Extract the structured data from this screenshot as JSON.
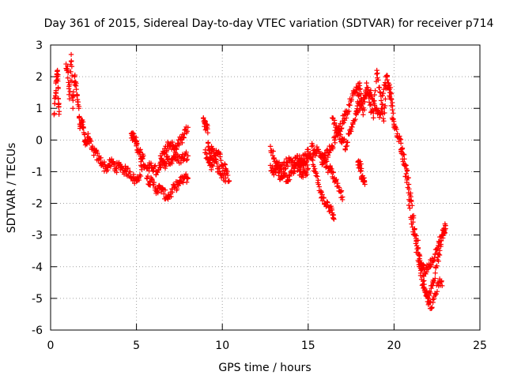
{
  "chart_data": {
    "type": "scatter",
    "title": "Day 361 of 2015, Sidereal Day-to-day VTEC variation (SDTVAR) for receiver p714",
    "xlabel": "GPS time / hours",
    "ylabel": "SDTVAR / TECUs",
    "xlim": [
      0,
      25
    ],
    "ylim": [
      -6,
      3
    ],
    "xticks": [
      0,
      5,
      10,
      15,
      20,
      25
    ],
    "xtick_labels": [
      "0",
      "5",
      "10",
      "15",
      "20",
      "25"
    ],
    "yticks": [
      -6,
      -5,
      -4,
      -3,
      -2,
      -1,
      0,
      1,
      2,
      3
    ],
    "ytick_labels": [
      "-6",
      "-5",
      "-4",
      "-3",
      "-2",
      "-1",
      "0",
      "1",
      "2",
      "3"
    ],
    "grid": true,
    "marker": "+",
    "color": "#ff0000",
    "series": [
      {
        "name": "SDTVAR",
        "segments": [
          {
            "x": [
              0.2,
              0.3,
              0.35,
              0.4,
              0.45,
              0.5
            ],
            "y": [
              0.8,
              1.5,
              2.0,
              2.2,
              1.3,
              0.9
            ]
          },
          {
            "x": [
              0.9,
              1.0,
              1.1,
              1.2,
              1.3,
              1.4,
              1.5,
              1.6,
              1.7,
              1.8,
              1.9,
              2.0,
              2.1,
              2.2,
              2.4,
              2.6,
              2.8,
              3.0,
              3.2,
              3.4,
              3.6,
              3.8,
              4.0,
              4.2,
              4.4,
              4.6,
              4.8,
              5.0,
              5.2,
              5.4
            ],
            "y": [
              2.4,
              2.2,
              1.3,
              2.7,
              1.0,
              2.0,
              1.6,
              1.2,
              0.5,
              0.6,
              0.4,
              0.0,
              -0.1,
              0.1,
              -0.3,
              -0.4,
              -0.6,
              -0.7,
              -0.9,
              -0.8,
              -0.7,
              -0.9,
              -0.8,
              -0.9,
              -1.0,
              -1.0,
              -1.2,
              -1.3,
              -1.1,
              -0.5
            ]
          },
          {
            "x": [
              4.7,
              4.8,
              4.9,
              5.0,
              5.1,
              5.2,
              5.3,
              5.5
            ],
            "y": [
              0.2,
              0.1,
              0.0,
              -0.1,
              -0.3,
              -0.4,
              -0.6,
              -0.8
            ]
          },
          {
            "x": [
              5.6,
              5.8,
              6.0,
              6.2,
              6.4,
              6.6,
              6.8,
              7.0,
              7.2,
              7.4,
              7.6,
              7.8,
              8.0
            ],
            "y": [
              -1.2,
              -1.3,
              -1.4,
              -1.6,
              -1.5,
              -1.7,
              -1.8,
              -1.7,
              -1.5,
              -1.4,
              -1.3,
              -1.2,
              -1.2
            ]
          },
          {
            "x": [
              5.6,
              5.8,
              6.0,
              6.2,
              6.4,
              6.6,
              6.8,
              7.0,
              7.2,
              7.4,
              7.6,
              7.8,
              8.0
            ],
            "y": [
              -0.9,
              -0.8,
              -0.9,
              -1.0,
              -0.7,
              -0.8,
              -0.6,
              -0.7,
              -0.5,
              -0.6,
              -0.6,
              -0.5,
              -0.5
            ]
          },
          {
            "x": [
              6.4,
              6.6,
              6.8,
              7.0,
              7.2,
              7.4,
              7.6,
              7.8,
              8.0
            ],
            "y": [
              -0.5,
              -0.4,
              -0.2,
              -0.1,
              -0.3,
              -0.1,
              0.0,
              0.2,
              0.4
            ]
          },
          {
            "x": [
              8.9,
              9.0,
              9.1,
              9.2,
              9.3,
              9.4,
              9.6,
              9.8,
              10.0,
              10.2,
              10.4
            ],
            "y": [
              0.7,
              0.5,
              0.4,
              -0.2,
              -0.6,
              -0.3,
              -0.5,
              -0.4,
              -0.8,
              -0.9,
              -1.3
            ]
          },
          {
            "x": [
              9.0,
              9.2,
              9.4,
              9.6,
              9.8,
              10.0,
              10.2
            ],
            "y": [
              -0.4,
              -0.7,
              -0.8,
              -0.6,
              -1.0,
              -1.1,
              -1.2
            ]
          },
          {
            "x": [
              12.8,
              13.0,
              13.2,
              13.4,
              13.6,
              13.8,
              14.0,
              14.2,
              14.4,
              14.6,
              14.8,
              15.0
            ],
            "y": [
              -0.2,
              -0.6,
              -0.9,
              -1.2,
              -1.1,
              -1.3,
              -1.0,
              -0.9,
              -0.8,
              -1.1,
              -1.0,
              -0.9
            ]
          },
          {
            "x": [
              12.8,
              13.0,
              13.2,
              13.4,
              13.6,
              13.8,
              14.0,
              14.2,
              14.4,
              14.6,
              14.8,
              15.0
            ],
            "y": [
              -0.8,
              -1.1,
              -0.7,
              -0.9,
              -0.8,
              -0.7,
              -0.6,
              -0.7,
              -0.6,
              -0.8,
              -0.7,
              -0.6
            ]
          },
          {
            "x": [
              14.4,
              14.6,
              14.8,
              15.0,
              15.2,
              15.4,
              15.6,
              15.8,
              16.0,
              16.2,
              16.4,
              16.5
            ],
            "y": [
              -0.6,
              -0.7,
              -0.5,
              -0.3,
              -0.6,
              -1.0,
              -1.4,
              -1.8,
              -2.0,
              -2.1,
              -2.3,
              -2.5
            ]
          },
          {
            "x": [
              15.2,
              15.4,
              15.6,
              15.8,
              16.0,
              16.2,
              16.4,
              16.6,
              16.8,
              17.0
            ],
            "y": [
              -0.2,
              -0.4,
              -0.3,
              -0.5,
              -0.7,
              -0.9,
              -1.0,
              -1.3,
              -1.5,
              -1.8
            ]
          },
          {
            "x": [
              15.8,
              16.0,
              16.2,
              16.4,
              16.6,
              16.8,
              17.0,
              17.2,
              17.4,
              17.6,
              17.8,
              18.0
            ],
            "y": [
              -0.7,
              -0.5,
              -0.4,
              -0.2,
              0.1,
              0.3,
              0.6,
              0.8,
              1.1,
              1.4,
              1.6,
              1.8
            ]
          },
          {
            "x": [
              16.4,
              16.6,
              16.8,
              17.0,
              17.2,
              17.4,
              17.6,
              17.8,
              18.0
            ],
            "y": [
              0.7,
              0.4,
              0.2,
              0.0,
              -0.2,
              0.2,
              0.5,
              0.8,
              1.2
            ]
          },
          {
            "x": [
              17.8,
              18.0,
              18.2,
              18.4,
              18.6,
              18.8,
              19.0,
              19.2,
              19.4,
              19.6,
              19.8,
              20.0,
              20.2
            ],
            "y": [
              0.9,
              1.6,
              0.8,
              1.8,
              1.1,
              0.7,
              2.2,
              1.5,
              0.6,
              1.9,
              1.3,
              0.4,
              0.2
            ]
          },
          {
            "x": [
              18.0,
              18.2,
              18.4,
              18.6,
              18.8,
              19.0,
              19.2,
              19.4,
              19.6,
              19.8,
              20.0
            ],
            "y": [
              1.0,
              1.2,
              1.4,
              1.5,
              1.2,
              1.0,
              0.8,
              1.6,
              2.0,
              1.5,
              0.5
            ]
          },
          {
            "x": [
              17.9,
              18.0,
              18.1
            ],
            "y": [
              -0.7,
              -0.8,
              -0.9
            ]
          },
          {
            "x": [
              18.1,
              18.2,
              18.3
            ],
            "y": [
              -1.2,
              -1.3,
              -1.4
            ]
          },
          {
            "x": [
              20.2,
              20.4,
              20.6,
              20.8,
              21.0,
              21.2,
              21.4,
              21.6,
              21.8,
              22.0,
              22.2,
              22.4,
              22.6,
              22.8,
              23.0
            ],
            "y": [
              0.1,
              -0.1,
              -0.8,
              -1.5,
              -2.5,
              -3.0,
              -3.8,
              -4.4,
              -4.8,
              -5.0,
              -4.6,
              -4.2,
              -3.6,
              -3.0,
              -2.7
            ]
          },
          {
            "x": [
              20.4,
              20.6,
              20.8,
              21.0,
              21.2,
              21.4,
              21.6,
              21.8,
              22.0,
              22.2,
              22.4,
              22.6,
              22.8
            ],
            "y": [
              -0.3,
              -0.6,
              -1.2,
              -1.9,
              -2.8,
              -3.4,
              -4.1,
              -4.7,
              -5.2,
              -5.3,
              -4.9,
              -4.5,
              -4.6
            ]
          },
          {
            "x": [
              21.4,
              21.6,
              21.8,
              22.0,
              22.2,
              22.4,
              22.6,
              22.8,
              23.0
            ],
            "y": [
              -3.6,
              -3.9,
              -4.2,
              -4.0,
              -3.8,
              -3.6,
              -3.2,
              -3.0,
              -2.8
            ]
          }
        ]
      }
    ]
  }
}
